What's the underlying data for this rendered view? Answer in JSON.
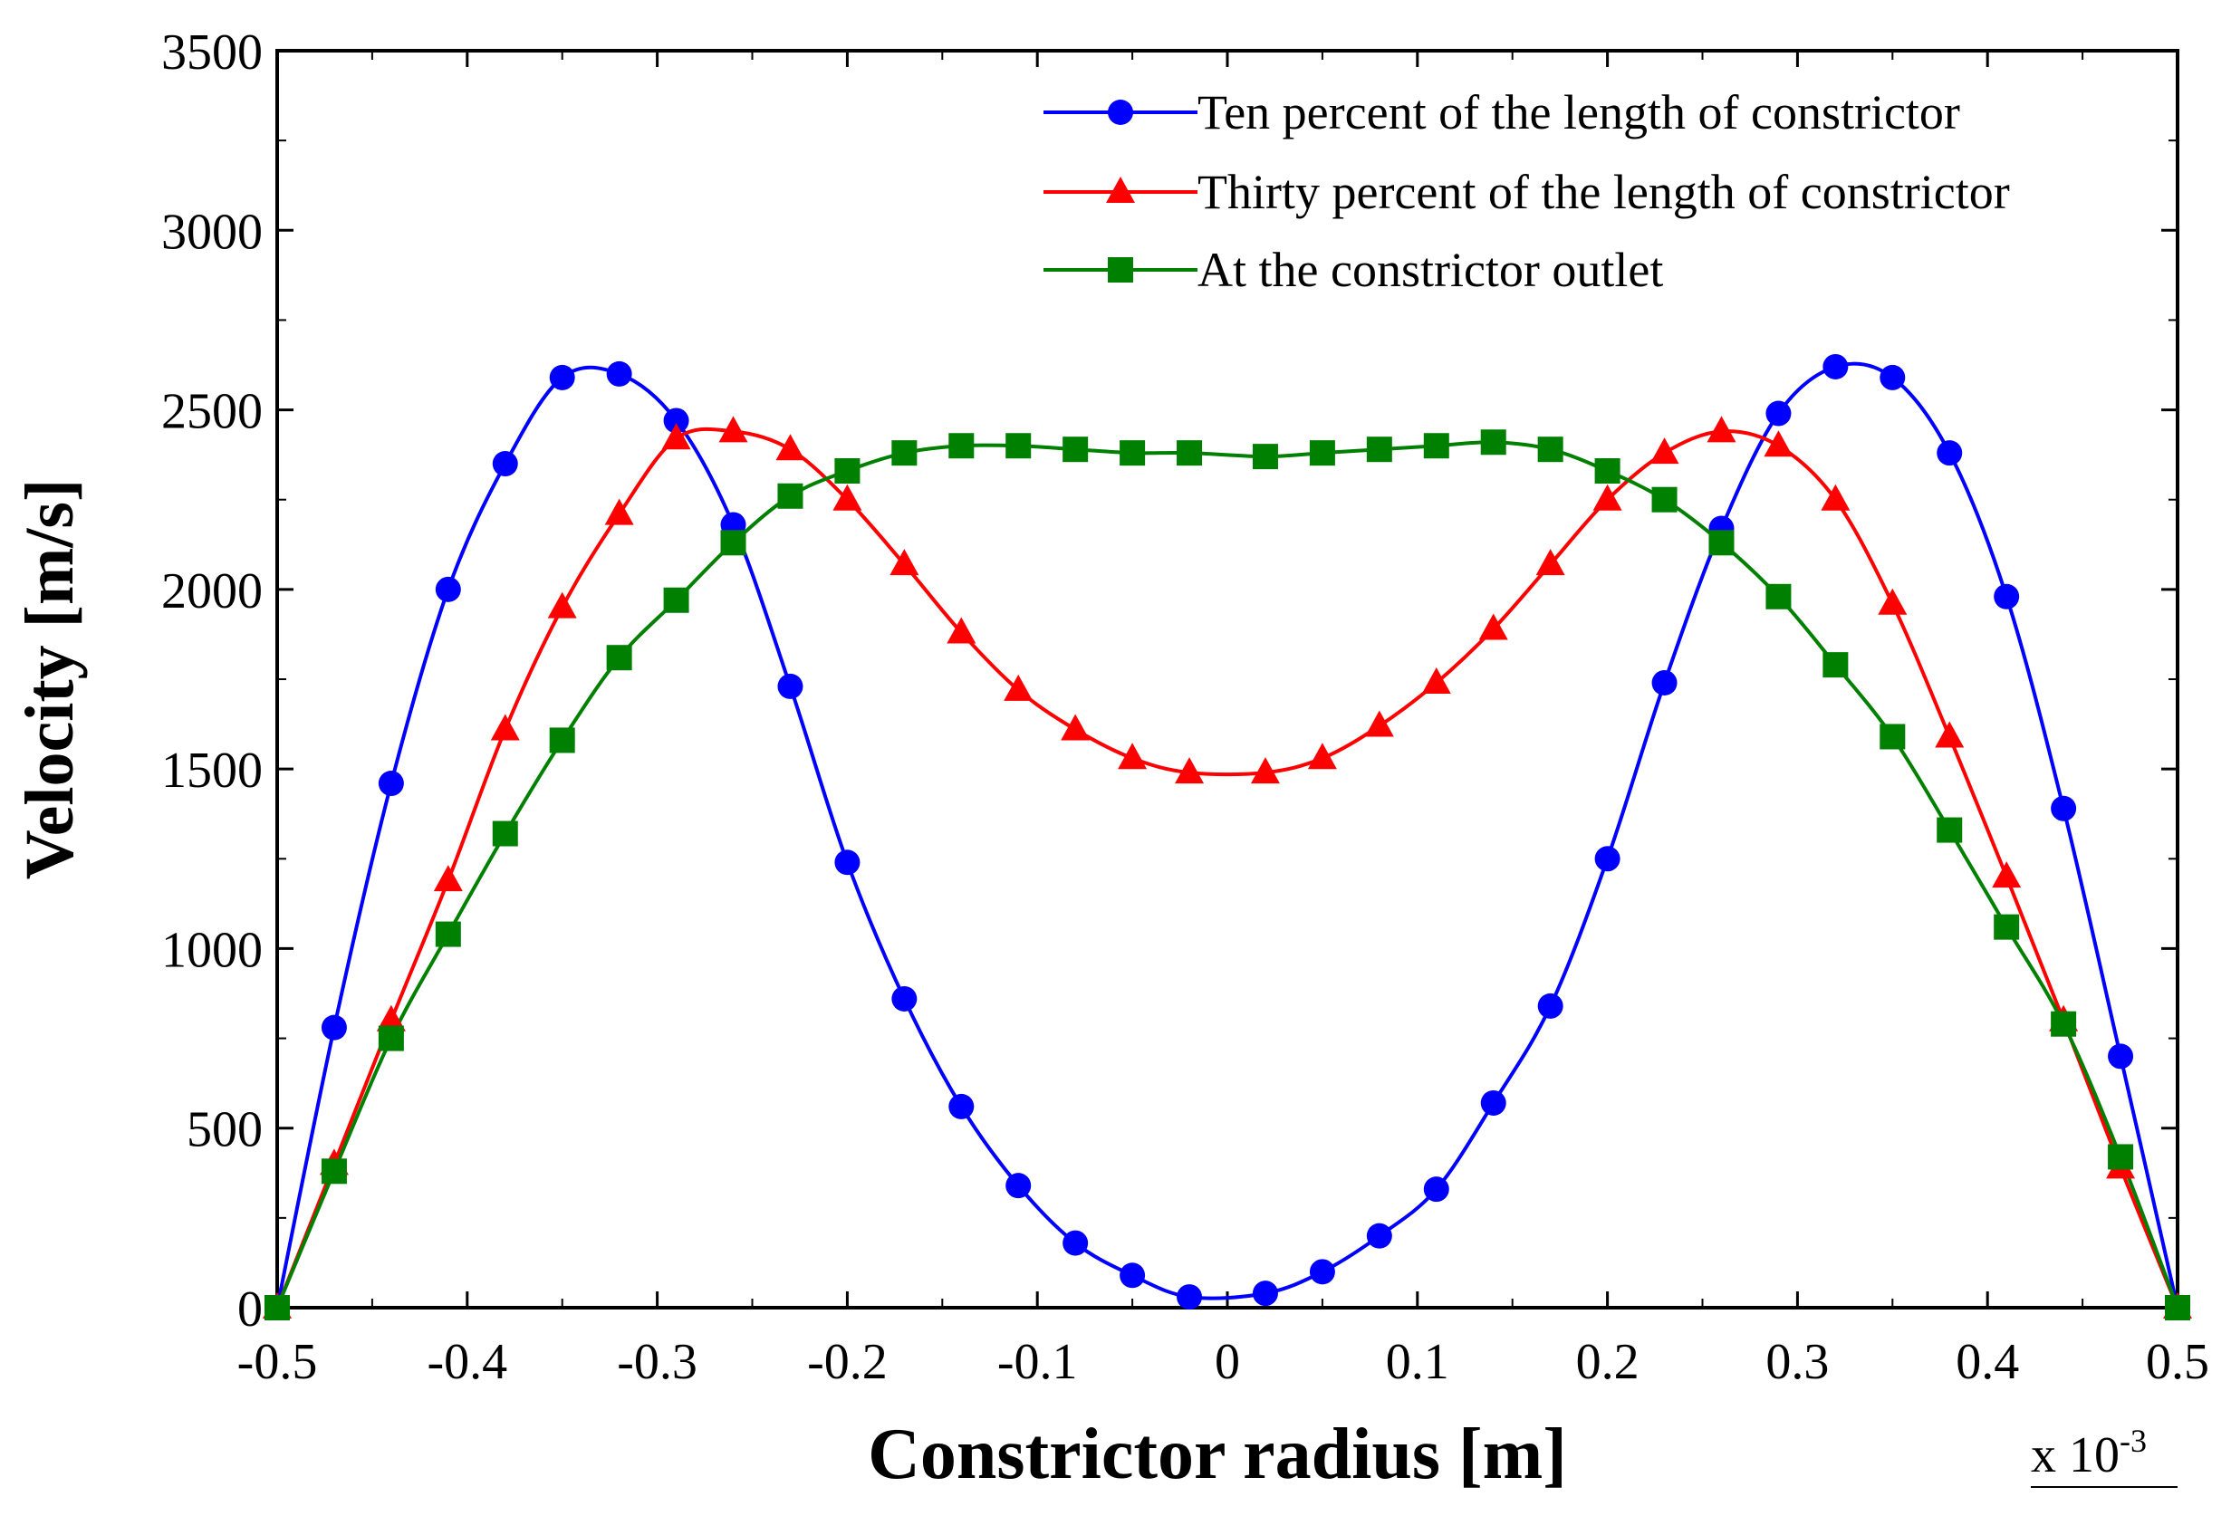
{
  "chart_data": {
    "type": "line",
    "title": "",
    "xlabel": "Constrictor radius [m]",
    "ylabel": "Velocity [m/s]",
    "x_multiplier": "x 10",
    "x_multiplier_exponent": "-3",
    "xlim": [
      -0.5,
      0.5
    ],
    "ylim": [
      0,
      3500
    ],
    "xticks": [
      -0.5,
      -0.4,
      -0.3,
      -0.2,
      -0.1,
      0,
      0.1,
      0.2,
      0.3,
      0.4,
      0.5
    ],
    "xtick_labels": [
      "-0.5",
      "-0.4",
      "-0.3",
      "-0.2",
      "-0.1",
      "0",
      "0.1",
      "0.2",
      "0.3",
      "0.4",
      "0.5"
    ],
    "yticks": [
      0,
      500,
      1000,
      1500,
      2000,
      2500,
      3000,
      3500
    ],
    "ytick_labels": [
      "0",
      "500",
      "1000",
      "1500",
      "2000",
      "2500",
      "3000",
      "3500"
    ],
    "grid": false,
    "legend_position": "top-right",
    "x": [
      -0.5,
      -0.47,
      -0.44,
      -0.41,
      -0.38,
      -0.35,
      -0.32,
      -0.29,
      -0.26,
      -0.23,
      -0.2,
      -0.17,
      -0.14,
      -0.11,
      -0.08,
      -0.05,
      -0.02,
      0.02,
      0.05,
      0.08,
      0.11,
      0.14,
      0.17,
      0.2,
      0.23,
      0.26,
      0.29,
      0.32,
      0.35,
      0.38,
      0.41,
      0.44,
      0.47,
      0.5
    ],
    "series": [
      {
        "name": "Ten percent of the length of constrictor",
        "color": "#0000ff",
        "marker": "circle",
        "values": [
          0,
          780,
          1460,
          2000,
          2350,
          2590,
          2600,
          2470,
          2180,
          1730,
          1240,
          860,
          560,
          340,
          180,
          90,
          30,
          40,
          100,
          200,
          330,
          570,
          840,
          1250,
          1740,
          2170,
          2490,
          2620,
          2590,
          2380,
          1980,
          1390,
          700,
          0
        ]
      },
      {
        "name": "Thirty percent of the length of constrictor",
        "color": "#ff0000",
        "marker": "triangle",
        "values": [
          0,
          400,
          800,
          1190,
          1610,
          1950,
          2210,
          2420,
          2440,
          2390,
          2250,
          2070,
          1880,
          1720,
          1610,
          1530,
          1490,
          1490,
          1530,
          1620,
          1740,
          1890,
          2070,
          2250,
          2380,
          2440,
          2400,
          2250,
          1960,
          1590,
          1200,
          800,
          390,
          0
        ]
      },
      {
        "name": "At the constrictor outlet",
        "color": "#008000",
        "marker": "square",
        "values": [
          0,
          380,
          750,
          1040,
          1320,
          1580,
          1810,
          1970,
          2130,
          2260,
          2330,
          2380,
          2400,
          2400,
          2390,
          2380,
          2380,
          2370,
          2380,
          2390,
          2400,
          2410,
          2390,
          2330,
          2250,
          2130,
          1980,
          1790,
          1590,
          1330,
          1060,
          790,
          420,
          0
        ]
      }
    ]
  }
}
